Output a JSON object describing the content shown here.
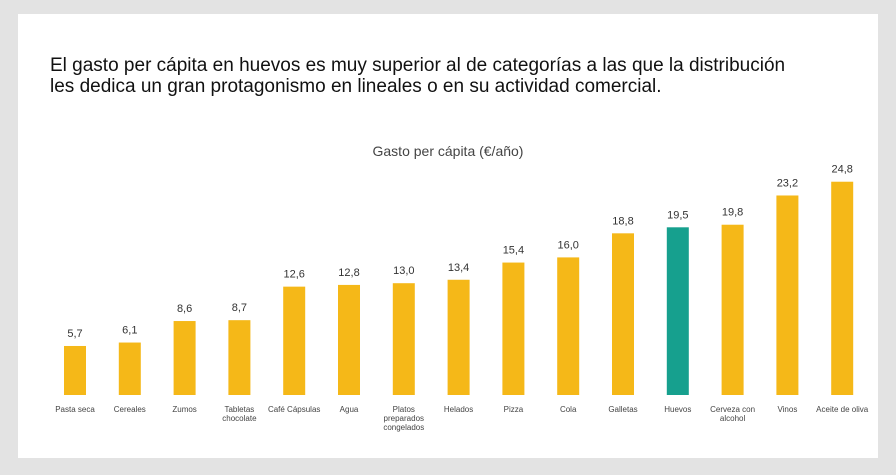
{
  "chart_data": {
    "type": "bar",
    "title": "El gasto per cápita en huevos es muy superior al de categorías a las que la distribución les dedica un gran protagonismo en lineales o en su actividad comercial.",
    "subtitle": "Gasto per cápita (€/año)",
    "categories": [
      "Pasta seca",
      "Cereales",
      "Zumos",
      "Tabletas chocolate",
      "Café Cápsulas",
      "Agua",
      "Platos preparados congelados",
      "Helados",
      "Pizza",
      "Cola",
      "Galletas",
      "Huevos",
      "Cerveza con alcohol",
      "Vinos",
      "Aceite de oliva"
    ],
    "values": [
      5.7,
      6.1,
      8.6,
      8.7,
      12.6,
      12.8,
      13.0,
      13.4,
      15.4,
      16.0,
      18.8,
      19.5,
      19.8,
      23.2,
      24.8
    ],
    "value_labels": [
      "5,7",
      "6,1",
      "8,6",
      "8,7",
      "12,6",
      "12,8",
      "13,0",
      "13,4",
      "15,4",
      "16,0",
      "18,8",
      "19,5",
      "19,8",
      "23,2",
      "24,8"
    ],
    "colors": [
      "#f5b818",
      "#f5b818",
      "#f5b818",
      "#f5b818",
      "#f5b818",
      "#f5b818",
      "#f5b818",
      "#f5b818",
      "#f5b818",
      "#f5b818",
      "#f5b818",
      "#16a08e",
      "#f5b818",
      "#f5b818",
      "#f5b818"
    ],
    "ylim": [
      0,
      25
    ]
  }
}
